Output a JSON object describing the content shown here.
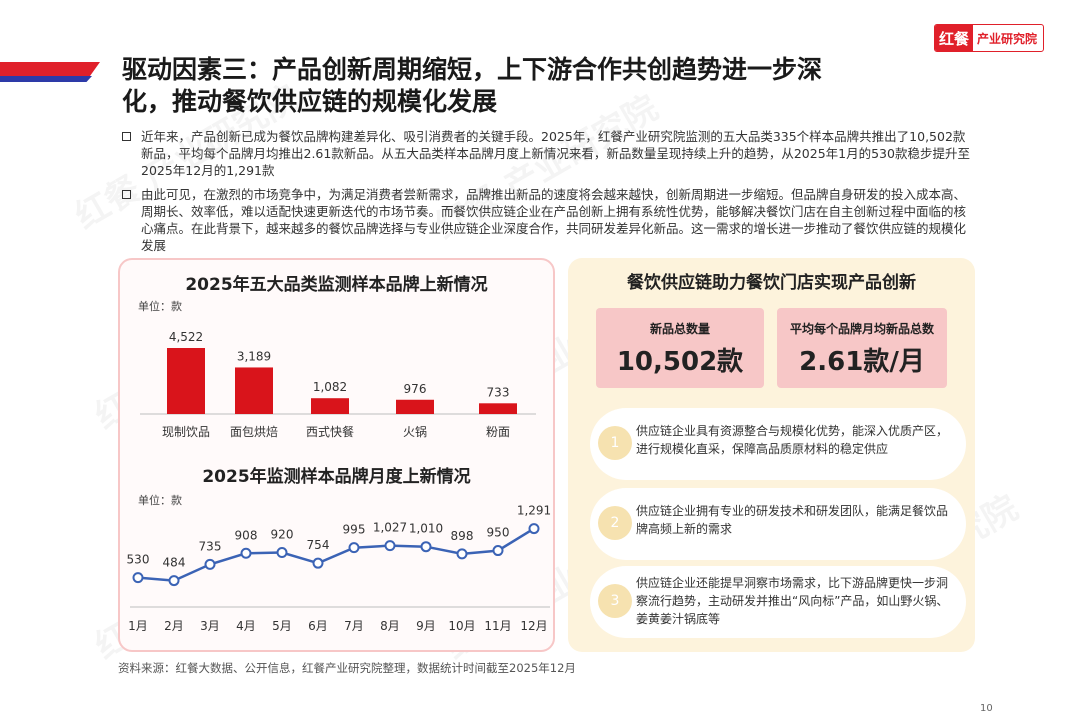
{
  "header": {
    "brand_logo": "红餐",
    "brand_text": "产业研究院",
    "title_line1": "驱动因素三：产品创新周期缩短，上下游合作共创趋势进一步深",
    "title_line2": "化，推动餐饮供应链的规模化发展"
  },
  "bullets": [
    "近年来，产品创新已成为餐饮品牌构建差异化、吸引消费者的关键手段。2025年，红餐产业研究院监测的五大品类335个样本品牌共推出了10,502款新品，平均每个品牌月均推出2.61款新品。从五大品类样本品牌月度上新情况来看，新品数量呈现持续上升的趋势，从2025年1月的530款稳步提升至2025年12月的1,291款",
    "由此可见，在激烈的市场竞争中，为满足消费者尝新需求，品牌推出新品的速度将会越来越快，创新周期进一步缩短。但品牌自身研发的投入成本高、周期长、效率低，难以适配快速更新迭代的市场节奏。而餐饮供应链企业在产品创新上拥有系统性优势，能够解决餐饮门店在自主创新过程中面临的核心痛点。在此背景下，越来越多的餐饮品牌选择与专业供应链企业深度合作，共同研发差异化新品。这一需求的增长进一步推动了餐饮供应链的规模化发展"
  ],
  "chart_data": [
    {
      "type": "bar",
      "title": "2025年五大品类监测样本品牌上新情况",
      "unit_label": "单位：款",
      "categories": [
        "现制饮品",
        "面包烘焙",
        "西式快餐",
        "火锅",
        "粉面"
      ],
      "values": [
        4522,
        3189,
        1082,
        976,
        733
      ],
      "value_labels": [
        "4,522",
        "3,189",
        "1,082",
        "976",
        "733"
      ],
      "color": "#d9141b",
      "ylim": [
        0,
        4522
      ]
    },
    {
      "type": "line",
      "title": "2025年监测样本品牌月度上新情况",
      "unit_label": "单位：款",
      "categories": [
        "1月",
        "2月",
        "3月",
        "4月",
        "5月",
        "6月",
        "7月",
        "8月",
        "9月",
        "10月",
        "11月",
        "12月"
      ],
      "values": [
        530,
        484,
        735,
        908,
        920,
        754,
        995,
        1027,
        1010,
        898,
        950,
        1291
      ],
      "value_labels": [
        "530",
        "484",
        "735",
        "908",
        "920",
        "754",
        "995",
        "1,027",
        "1,010",
        "898",
        "950",
        "1,291"
      ],
      "color": "#3b63b5"
    }
  ],
  "right_panel": {
    "title": "餐饮供应链助力餐饮门店实现产品创新",
    "kpis": [
      {
        "label": "新品总数量",
        "value": "10,502款"
      },
      {
        "label": "平均每个品牌月均新品总数",
        "value": "2.61款/月"
      }
    ],
    "items": [
      {
        "num": "1",
        "text": "供应链企业具有资源整合与规模化优势，能深入优质产区，进行规模化直采，保障高品质原材料的稳定供应"
      },
      {
        "num": "2",
        "text": "供应链企业拥有专业的研发技术和研发团队，能满足餐饮品牌高频上新的需求"
      },
      {
        "num": "3",
        "text": "供应链企业还能提早洞察市场需求，比下游品牌更快一步洞察流行趋势，主动研发并推出“风向标”产品，如山野火锅、姜黄姜汁锅底等"
      }
    ]
  },
  "footer": {
    "source": "资料来源：红餐大数据、公开信息，红餐产业研究院整理，数据统计时间截至2025年12月",
    "page": "10"
  },
  "watermark": "红餐 产业研究院"
}
